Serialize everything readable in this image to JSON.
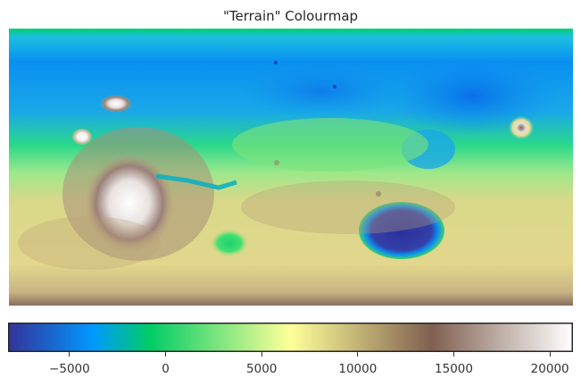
{
  "title": "\"Terrain\" Colourmap",
  "map": {
    "colormap": "terrain"
  },
  "colorbar": {
    "vmin": -8200,
    "vmax": 21200,
    "ticks": [
      {
        "value": -5000,
        "label": "−5000"
      },
      {
        "value": 0,
        "label": "0"
      },
      {
        "value": 5000,
        "label": "5000"
      },
      {
        "value": 10000,
        "label": "10000"
      },
      {
        "value": 15000,
        "label": "15000"
      },
      {
        "value": 20000,
        "label": "20000"
      }
    ],
    "stops": [
      "#333399",
      "#0099ff",
      "#00cc66",
      "#ffff99",
      "#806050",
      "#ffffff"
    ]
  }
}
